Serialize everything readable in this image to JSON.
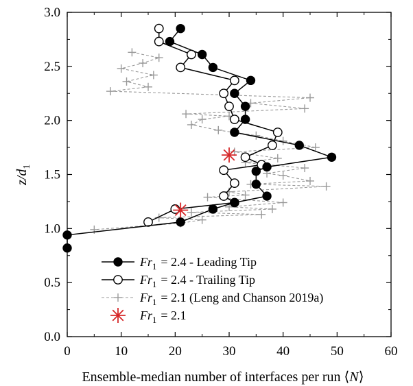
{
  "chart_data": {
    "type": "scatter",
    "xlabel": "Ensemble-median number of interfaces per run ⟨N⟩",
    "ylabel": "z/d₁",
    "xlim": [
      0,
      60
    ],
    "ylim": [
      0,
      3
    ],
    "xticks": [
      "0",
      "10",
      "20",
      "30",
      "40",
      "50",
      "60"
    ],
    "yticks": [
      "0.0",
      "0.5",
      "1.0",
      "1.5",
      "2.0",
      "2.5",
      "3.0"
    ],
    "grid": false,
    "legend_position": "bottom-left",
    "series": [
      {
        "name": "Fr₁ = 2.4 - Leading Tip",
        "marker": "filled-circle",
        "line": "solid",
        "color": "#000000",
        "points": [
          [
            21,
            2.85
          ],
          [
            19,
            2.73
          ],
          [
            25,
            2.61
          ],
          [
            27,
            2.49
          ],
          [
            34,
            2.37
          ],
          [
            31,
            2.25
          ],
          [
            33,
            2.13
          ],
          [
            33,
            2.01
          ],
          [
            31,
            1.89
          ],
          [
            43,
            1.77
          ],
          [
            49,
            1.66
          ],
          [
            37,
            1.57
          ],
          [
            35,
            1.53
          ],
          [
            35,
            1.41
          ],
          [
            37,
            1.3
          ],
          [
            31,
            1.24
          ],
          [
            27,
            1.18
          ],
          [
            21,
            1.06
          ],
          [
            0,
            0.94
          ],
          [
            0,
            0.82
          ]
        ]
      },
      {
        "name": "Fr₁ = 2.4 - Trailing Tip",
        "marker": "open-circle",
        "line": "solid",
        "color": "#000000",
        "points": [
          [
            17,
            2.85
          ],
          [
            17,
            2.73
          ],
          [
            23,
            2.61
          ],
          [
            21,
            2.49
          ],
          [
            31,
            2.37
          ],
          [
            29,
            2.25
          ],
          [
            30,
            2.13
          ],
          [
            31,
            2.01
          ],
          [
            39,
            1.89
          ],
          [
            38,
            1.77
          ],
          [
            33,
            1.66
          ],
          [
            36,
            1.59
          ],
          [
            29,
            1.54
          ],
          [
            31,
            1.42
          ],
          [
            29,
            1.3
          ],
          [
            31,
            1.24
          ],
          [
            20,
            1.18
          ],
          [
            15,
            1.06
          ]
        ]
      },
      {
        "name": "Fr₁ = 2.1 (Leng and Chanson 2019a)",
        "marker": "plus",
        "line": "dashed",
        "color": "#999999",
        "points": [
          [
            12,
            2.63
          ],
          [
            17,
            2.58
          ],
          [
            14,
            2.53
          ],
          [
            10,
            2.48
          ],
          [
            16,
            2.42
          ],
          [
            11,
            2.36
          ],
          [
            15,
            2.31
          ],
          [
            8,
            2.27
          ],
          [
            45,
            2.21
          ],
          [
            34,
            2.16
          ],
          [
            44,
            2.11
          ],
          [
            22,
            2.06
          ],
          [
            30,
            2.04
          ],
          [
            25,
            2.01
          ],
          [
            23,
            1.96
          ],
          [
            28,
            1.91
          ],
          [
            35,
            1.86
          ],
          [
            40,
            1.81
          ],
          [
            46,
            1.75
          ],
          [
            31,
            1.71
          ],
          [
            39,
            1.65
          ],
          [
            33,
            1.61
          ],
          [
            44,
            1.56
          ],
          [
            37,
            1.51
          ],
          [
            40,
            1.49
          ],
          [
            45,
            1.44
          ],
          [
            34,
            1.41
          ],
          [
            48,
            1.39
          ],
          [
            30,
            1.34
          ],
          [
            33,
            1.31
          ],
          [
            26,
            1.29
          ],
          [
            40,
            1.24
          ],
          [
            30,
            1.2
          ],
          [
            38,
            1.18
          ],
          [
            23,
            1.15
          ],
          [
            36,
            1.13
          ],
          [
            17,
            1.1
          ],
          [
            25,
            1.08
          ],
          [
            21,
            1.05
          ],
          [
            5,
            0.99
          ]
        ]
      },
      {
        "name": "Fr₁ = 2.1",
        "marker": "asterisk",
        "line": "none",
        "color": "#d62728",
        "points": [
          [
            30,
            1.68
          ],
          [
            21,
            1.17
          ]
        ]
      }
    ]
  }
}
